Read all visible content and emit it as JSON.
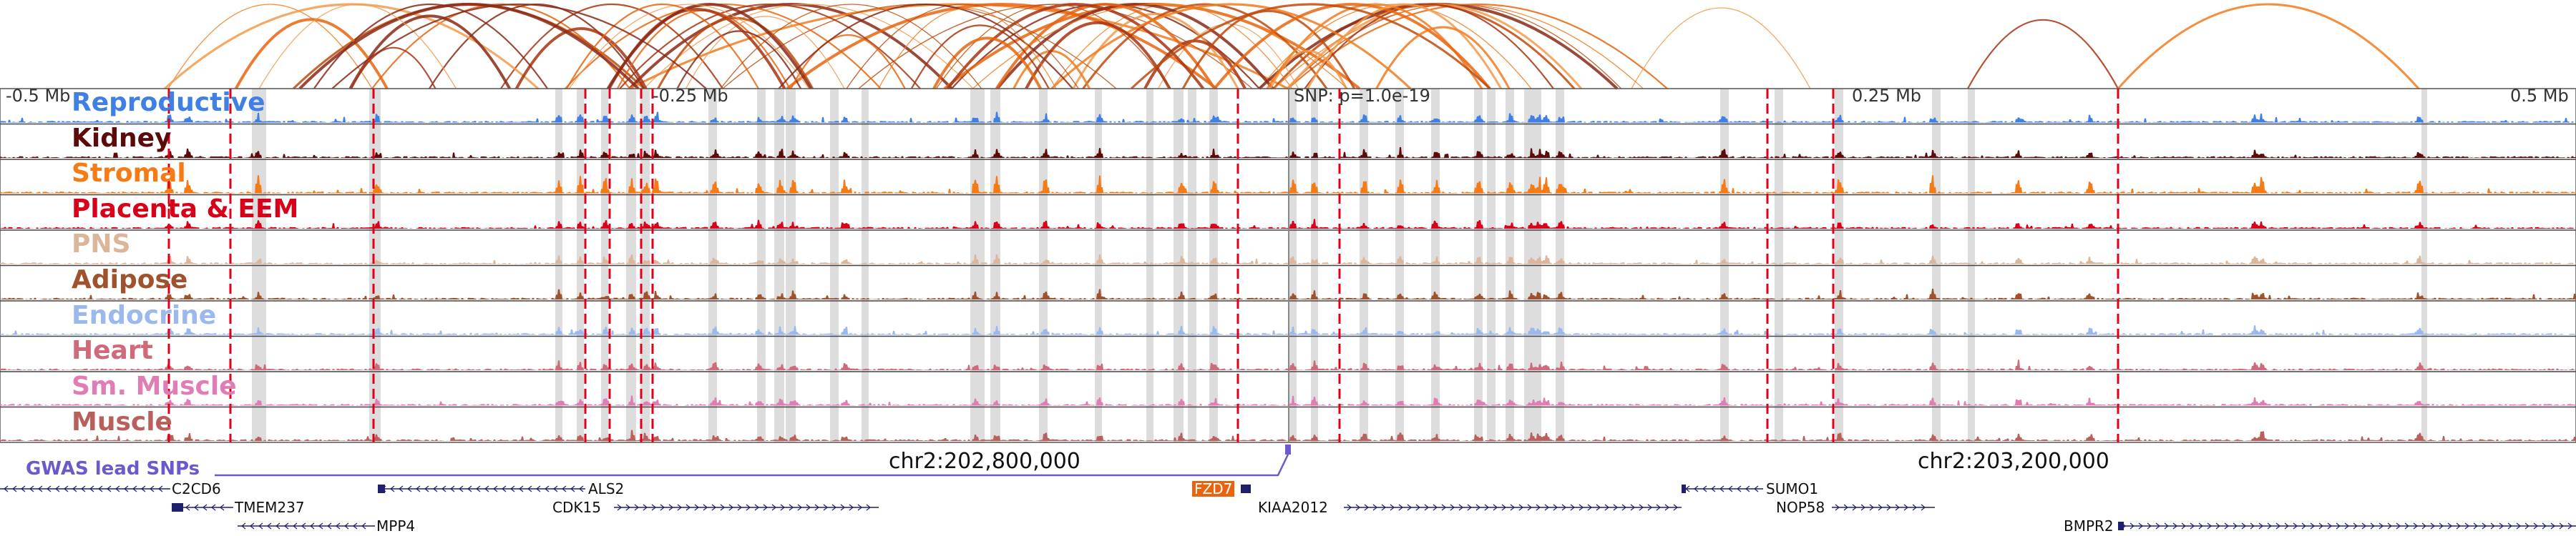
{
  "scale": {
    "left": "-0.5 Mb",
    "left_mid": "-0.25 Mb",
    "snp": "SNP: p=1.0e-19",
    "right_mid": "0.25 Mb",
    "right": "0.5 Mb"
  },
  "tracks": [
    {
      "label": "Reproductive",
      "color": "#3f80e6"
    },
    {
      "label": "Kidney",
      "color": "#5c0a0a"
    },
    {
      "label": "Stromal",
      "color": "#f57b16"
    },
    {
      "label": "Placenta & EEM",
      "color": "#d9001a"
    },
    {
      "label": "PNS",
      "color": "#ddb599"
    },
    {
      "label": "Adipose",
      "color": "#a0522d"
    },
    {
      "label": "Endocrine",
      "color": "#9ab9ee"
    },
    {
      "label": "Heart",
      "color": "#cf6a7a"
    },
    {
      "label": "Sm. Muscle",
      "color": "#e17db5"
    },
    {
      "label": "Muscle",
      "color": "#b9605d"
    }
  ],
  "coordinates": {
    "first": "chr2:202,800,000",
    "second": "chr2:203,200,000"
  },
  "gwas": {
    "label": "GWAS lead SNPs",
    "color": "#6a5acd"
  },
  "genes": [
    {
      "name": "C2CD6",
      "highlight": false
    },
    {
      "name": "TMEM237",
      "highlight": false
    },
    {
      "name": "MPP4",
      "highlight": false
    },
    {
      "name": "ALS2",
      "highlight": false
    },
    {
      "name": "CDK15",
      "highlight": false
    },
    {
      "name": "FZD7",
      "highlight": true
    },
    {
      "name": "KIAA2012",
      "highlight": false
    },
    {
      "name": "SUMO1",
      "highlight": false
    },
    {
      "name": "NOP58",
      "highlight": false
    },
    {
      "name": "BMPR2",
      "highlight": false
    }
  ]
}
